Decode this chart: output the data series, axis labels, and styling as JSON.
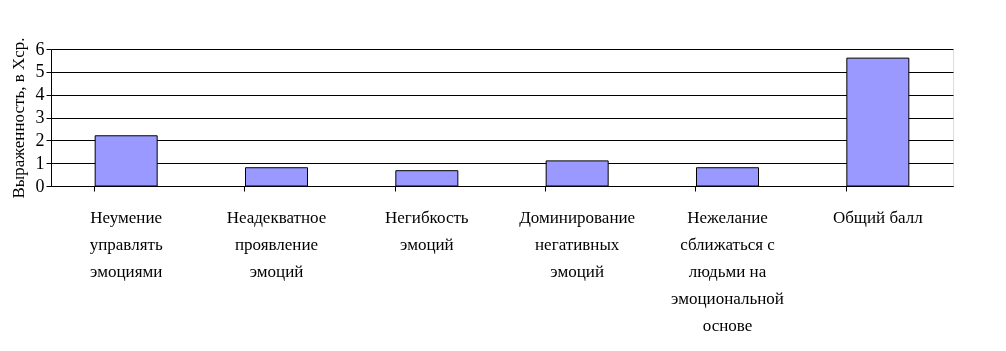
{
  "chart_data": {
    "type": "bar",
    "ylabel": "Выраженность, в Хср.",
    "categories": [
      "Неумение управлять эмоциями",
      "Неадекватное проявление эмоций",
      "Негибкость эмоций",
      "Доминирование негативных эмоций",
      "Нежелание сближаться с людьми на эмоциональной основе",
      "Общий балл"
    ],
    "values": [
      2.2,
      0.8,
      0.67,
      1.1,
      0.8,
      5.6
    ],
    "color": "#9999ff",
    "ylim": [
      0,
      6
    ],
    "yticks": [
      0,
      1,
      2,
      3,
      4,
      5,
      6
    ],
    "grid": "y"
  }
}
